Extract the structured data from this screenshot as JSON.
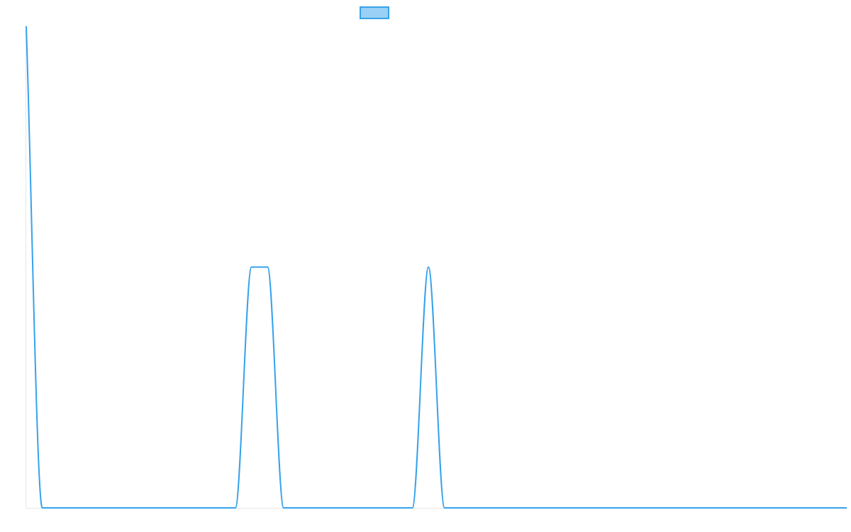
{
  "chart_data": {
    "type": "line",
    "title": "",
    "xlabel": "",
    "ylabel": "",
    "grid": false,
    "legend_position": "top",
    "colors": {
      "line": "#36a2eb",
      "legend_fill": "#9ad0f5",
      "axis": "#e6e6e6"
    },
    "ylim": [
      0,
      1
    ],
    "x": [
      0,
      1,
      2,
      3,
      4,
      5,
      6,
      7,
      8,
      9,
      10,
      11,
      12,
      13,
      14,
      15,
      16,
      17,
      18,
      19,
      20,
      21,
      22,
      23,
      24,
      25,
      26,
      27,
      28,
      29,
      30,
      31,
      32,
      33,
      34,
      35,
      36,
      37,
      38,
      39,
      40,
      41,
      42,
      43,
      44,
      45,
      46,
      47,
      48,
      49,
      50,
      51
    ],
    "series": [
      {
        "values": [
          1.0,
          0.0,
          0.0,
          0.0,
          0.0,
          0.0,
          0.0,
          0.0,
          0.0,
          0.0,
          0.0,
          0.0,
          0.0,
          0.0,
          0.5,
          0.5,
          0.0,
          0.0,
          0.0,
          0.0,
          0.0,
          0.0,
          0.0,
          0.0,
          0.0,
          0.5,
          0.0,
          0.0,
          0.0,
          0.0,
          0.0,
          0.0,
          0.0,
          0.0,
          0.0,
          0.0,
          0.0,
          0.0,
          0.0,
          0.0,
          0.0,
          0.0,
          0.0,
          0.0,
          0.0,
          0.0,
          0.0,
          0.0,
          0.0,
          0.0,
          0.0,
          0.0
        ]
      }
    ]
  }
}
